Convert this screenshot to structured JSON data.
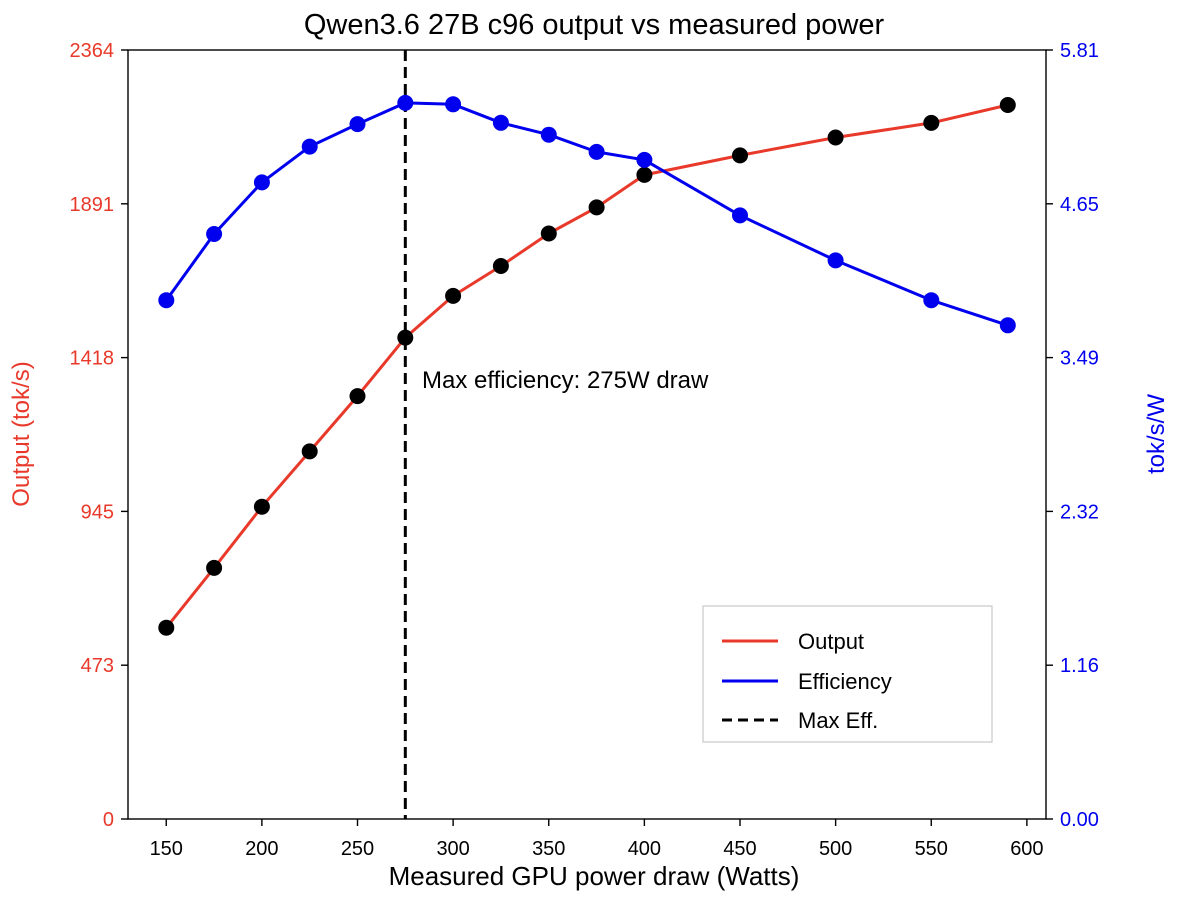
{
  "chart_data": {
    "type": "line",
    "title": "Qwen3.6 27B c96 output vs measured power",
    "xlabel": "Measured GPU power draw (Watts)",
    "ylabel_left": "Output (tok/s)",
    "ylabel_right": "tok/s/W",
    "xlim": [
      130,
      610
    ],
    "ylim_left": [
      0,
      2364
    ],
    "ylim_right": [
      0,
      5.81
    ],
    "x_ticks": [
      150,
      200,
      250,
      300,
      350,
      400,
      450,
      500,
      550,
      600
    ],
    "y_left_ticks": [
      "0",
      "473",
      "945",
      "1418",
      "1891",
      "2364"
    ],
    "y_right_ticks": [
      "0.00",
      "1.16",
      "2.32",
      "3.49",
      "4.65",
      "5.81"
    ],
    "grid": false,
    "legend_position": "lower-right",
    "series": [
      {
        "name": "Output",
        "axis": "left",
        "color": "#e8392a",
        "marker_color": "#000000",
        "x": [
          150,
          175,
          200,
          225,
          250,
          275,
          300,
          325,
          350,
          375,
          400,
          450,
          500,
          550,
          590
        ],
        "values": [
          588,
          772,
          960,
          1130,
          1300,
          1480,
          1608,
          1700,
          1800,
          1880,
          1980,
          2040,
          2095,
          2140,
          2195
        ]
      },
      {
        "name": "Efficiency",
        "axis": "right",
        "color": "#0000ee",
        "marker_color": "#0000ee",
        "x": [
          150,
          175,
          200,
          225,
          250,
          275,
          300,
          325,
          350,
          375,
          400,
          450,
          500,
          550,
          590
        ],
        "values": [
          3.92,
          4.42,
          4.81,
          5.08,
          5.25,
          5.41,
          5.4,
          5.26,
          5.17,
          5.04,
          4.98,
          4.56,
          4.22,
          3.92,
          3.73
        ]
      },
      {
        "name": "Max Eff.",
        "type": "vline",
        "color": "#000000",
        "x": 275
      }
    ],
    "annotation": {
      "text": "Max efficiency: 275W draw",
      "x": 275
    }
  }
}
